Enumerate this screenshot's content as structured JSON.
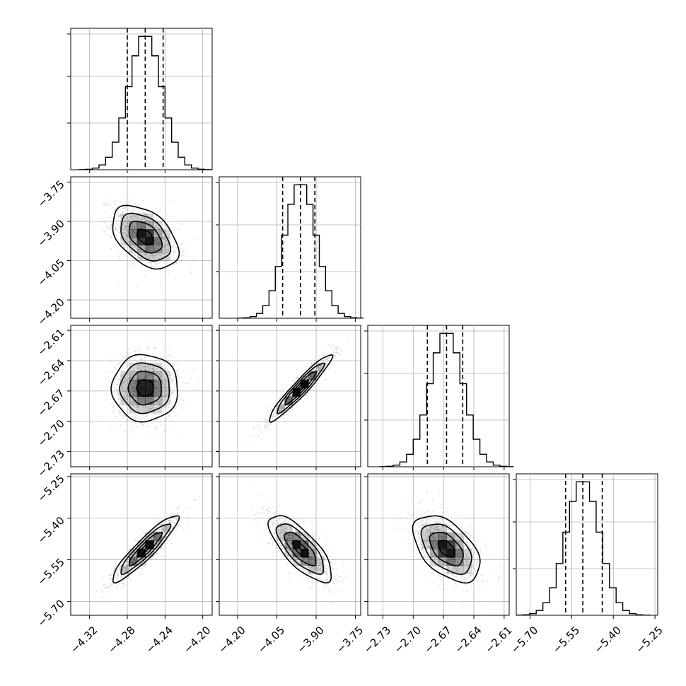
{
  "chart_data": {
    "type": "corner",
    "parameters": [
      {
        "index": 0,
        "mean": -4.261,
        "sd": 0.0175,
        "xlim": [
          -4.34,
          -4.19
        ],
        "xticks": [
          -4.32,
          -4.28,
          -4.24,
          -4.2
        ],
        "xtick_labels": [
          "−4.32",
          "−4.28",
          "−4.24",
          "−4.20"
        ],
        "quantiles": [
          -4.28,
          -4.261,
          -4.242
        ]
      },
      {
        "index": 1,
        "mean": -3.96,
        "sd": 0.06,
        "xlim": [
          -4.27,
          -3.73
        ],
        "xticks": [
          -4.2,
          -4.05,
          -3.9,
          -3.75
        ],
        "xtick_labels": [
          "−4.20",
          "−4.05",
          "−3.90",
          "−3.75"
        ],
        "yticks": [
          -3.75,
          -3.9,
          -4.05,
          -4.2
        ],
        "ytick_labels": [
          "−3.75",
          "−3.90",
          "−4.05",
          "−4.20"
        ],
        "quantiles": [
          -4.028,
          -3.96,
          -3.905
        ]
      },
      {
        "index": 2,
        "mean": -2.667,
        "sd": 0.0165,
        "xlim": [
          -2.745,
          -2.605
        ],
        "xticks": [
          -2.73,
          -2.7,
          -2.67,
          -2.64,
          -2.61
        ],
        "xtick_labels": [
          "−2.73",
          "−2.70",
          "−2.67",
          "−2.64",
          "−2.61"
        ],
        "yticks": [
          -2.61,
          -2.64,
          -2.67,
          -2.7,
          -2.73
        ],
        "ytick_labels": [
          "−2.61",
          "−2.64",
          "−2.67",
          "−2.70",
          "−2.73"
        ],
        "quantiles": [
          -2.686,
          -2.667,
          -2.651
        ]
      },
      {
        "index": 3,
        "mean": -5.51,
        "sd": 0.06,
        "xlim": [
          -5.75,
          -5.24
        ],
        "xticks": [
          -5.7,
          -5.55,
          -5.4,
          -5.25
        ],
        "xtick_labels": [
          "−5.70",
          "−5.55",
          "−5.40",
          "−5.25"
        ],
        "yticks": [
          -5.25,
          -5.4,
          -5.55,
          -5.7
        ],
        "ytick_labels": [
          "−5.25",
          "−5.40",
          "−5.55",
          "−5.70"
        ],
        "quantiles": [
          -5.572,
          -5.51,
          -5.44
        ]
      }
    ],
    "correlations": [
      {
        "pair": [
          0,
          1
        ],
        "rho": -0.45
      },
      {
        "pair": [
          0,
          2
        ],
        "rho": 0.0
      },
      {
        "pair": [
          1,
          2
        ],
        "rho": 0.95
      },
      {
        "pair": [
          0,
          3
        ],
        "rho": 0.92
      },
      {
        "pair": [
          1,
          3
        ],
        "rho": -0.75
      },
      {
        "pair": [
          2,
          3
        ],
        "rho": -0.5
      }
    ],
    "contour_levels_sigma": [
      0.5,
      1.0,
      1.5,
      2.0
    ],
    "quantile_levels": [
      0.16,
      0.5,
      0.84
    ],
    "histogram_bins": 20,
    "grid": true,
    "colors": {
      "density": "#000000",
      "points": "#808080",
      "grid": "#b0b0b0"
    }
  }
}
